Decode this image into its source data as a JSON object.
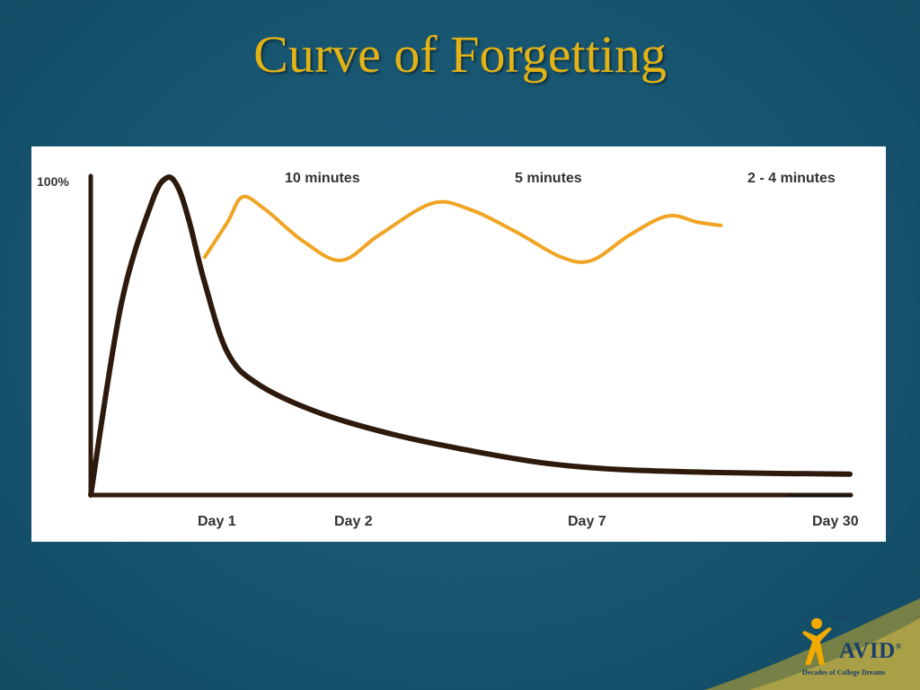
{
  "slide": {
    "title": "Curve of Forgetting"
  },
  "chart_data": {
    "type": "line",
    "title": "",
    "xlabel": "",
    "ylabel": "",
    "y_tick_label": "100%",
    "x_tick_labels": [
      "Day 1",
      "Day 2",
      "Day 7",
      "Day 30"
    ],
    "review_annotations": [
      "10 minutes",
      "5 minutes",
      "2 - 4 minutes"
    ],
    "grid": false,
    "series": [
      {
        "role": "without-review",
        "color": "#2e1a0d",
        "points": [
          [
            0,
            0
          ],
          [
            0.4,
            60
          ],
          [
            0.8,
            92
          ],
          [
            1.0,
            100
          ],
          [
            1.15,
            97
          ],
          [
            1.3,
            86
          ],
          [
            1.5,
            67
          ],
          [
            1.8,
            45
          ],
          [
            2.2,
            35
          ],
          [
            3.0,
            26
          ],
          [
            4.0,
            19
          ],
          [
            5.0,
            14
          ],
          [
            6.0,
            10
          ],
          [
            7.0,
            8
          ],
          [
            8.5,
            7
          ],
          [
            10.0,
            6.6
          ]
        ]
      },
      {
        "role": "with-review",
        "color": "#f0a423",
        "points": [
          [
            1.5,
            75
          ],
          [
            1.8,
            86
          ],
          [
            2.0,
            94
          ],
          [
            2.3,
            90
          ],
          [
            2.8,
            80
          ],
          [
            3.3,
            74
          ],
          [
            3.8,
            82
          ],
          [
            4.5,
            92
          ],
          [
            5.0,
            90
          ],
          [
            5.6,
            83
          ],
          [
            6.2,
            75
          ],
          [
            6.6,
            74
          ],
          [
            7.1,
            82
          ],
          [
            7.6,
            88
          ],
          [
            8.0,
            86
          ],
          [
            8.3,
            85
          ]
        ]
      }
    ]
  },
  "logo": {
    "name": "AVID",
    "registered": "®",
    "tagline": "Decades of College Dreams"
  },
  "colors": {
    "title": "#e3b316",
    "background": "#175570",
    "panel": "#ffffff",
    "axis": "#2e1a0d",
    "review": "#f0a423"
  }
}
